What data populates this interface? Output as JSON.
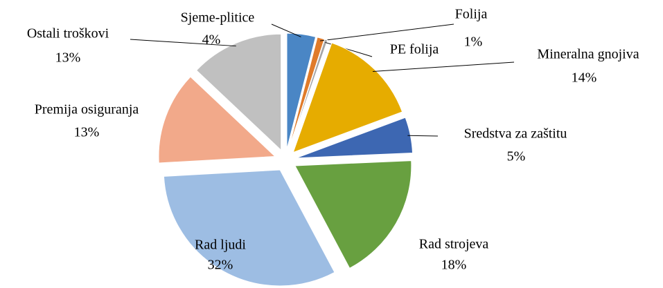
{
  "chart_data": {
    "type": "pie",
    "categories": [
      "Sjeme-plitice",
      "Folija",
      "PE folija",
      "Mineralna gnojiva",
      "Sredstva za zaštitu",
      "Rad strojeva",
      "Rad ljudi",
      "Premija osiguranja",
      "Ostali troškovi"
    ],
    "values": [
      4,
      1,
      0.4,
      14,
      5,
      18,
      32,
      13,
      13
    ],
    "value_labels": [
      "4%",
      "1%",
      null,
      "14%",
      "5%",
      "18%",
      "32%",
      "13%",
      "13%"
    ],
    "colors": [
      "#4a86c5",
      "#e07b2a",
      "#a5a5a5",
      "#e6ac00",
      "#3d67b2",
      "#68a040",
      "#9dbde3",
      "#f2a98a",
      "#c0c0c0"
    ]
  }
}
